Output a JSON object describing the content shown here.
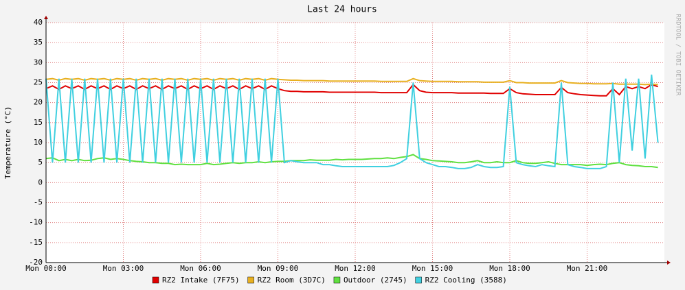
{
  "chart_data": {
    "type": "line",
    "title": "Last 24 hours",
    "ylabel": "Temperature (°C)",
    "watermark": "RRDTOOL / TOBI OETIKER",
    "x": [
      0,
      0.25,
      0.5,
      0.75,
      1,
      1.25,
      1.5,
      1.75,
      2,
      2.25,
      2.5,
      2.75,
      3,
      3.25,
      3.5,
      3.75,
      4,
      4.25,
      4.5,
      4.75,
      5,
      5.25,
      5.5,
      5.75,
      6,
      6.25,
      6.5,
      6.75,
      7,
      7.25,
      7.5,
      7.75,
      8,
      8.25,
      8.5,
      8.75,
      9,
      9.25,
      9.5,
      9.75,
      10,
      10.25,
      10.5,
      10.75,
      11,
      11.25,
      11.5,
      11.75,
      12,
      12.25,
      12.5,
      12.75,
      13,
      13.25,
      13.5,
      13.75,
      14,
      14.25,
      14.5,
      14.75,
      15,
      15.25,
      15.5,
      15.75,
      16,
      16.25,
      16.5,
      16.75,
      17,
      17.25,
      17.5,
      17.75,
      18,
      18.25,
      18.5,
      18.75,
      19,
      19.25,
      19.5,
      19.75,
      20,
      20.25,
      20.5,
      20.75,
      21,
      21.25,
      21.5,
      21.75,
      22,
      22.25,
      22.5,
      22.75,
      23,
      23.25,
      23.5,
      23.75
    ],
    "series": [
      {
        "name": "RZ2 Intake (7F75)",
        "color": "#e00000",
        "values": [
          23.5,
          24.2,
          23.3,
          24.2,
          23.5,
          24.2,
          23.3,
          24.2,
          23.5,
          24.2,
          23.3,
          24.2,
          23.5,
          24.2,
          23.3,
          24.2,
          23.5,
          24.2,
          23.3,
          24.2,
          23.5,
          24.2,
          23.3,
          24.2,
          23.5,
          24.2,
          23.3,
          24.2,
          23.5,
          24.2,
          23.3,
          24.2,
          23.5,
          24.2,
          23.3,
          24.2,
          23.5,
          23,
          22.8,
          22.8,
          22.7,
          22.7,
          22.7,
          22.7,
          22.6,
          22.6,
          22.6,
          22.6,
          22.6,
          22.6,
          22.6,
          22.6,
          22.5,
          22.5,
          22.5,
          22.5,
          22.5,
          24.5,
          23,
          22.6,
          22.5,
          22.5,
          22.5,
          22.5,
          22.4,
          22.4,
          22.4,
          22.4,
          22.4,
          22.3,
          22.3,
          22.3,
          23.5,
          22.5,
          22.2,
          22.1,
          22,
          22,
          22,
          22,
          23.8,
          22.5,
          22.2,
          22,
          21.9,
          21.8,
          21.7,
          21.7,
          23.5,
          22,
          24,
          23.5,
          24,
          23.5,
          24.5,
          24
        ]
      },
      {
        "name": "RZ2 Room (3D7C)",
        "color": "#e8b020",
        "values": [
          25.8,
          26,
          25.6,
          26,
          25.8,
          26,
          25.6,
          26,
          25.8,
          26,
          25.6,
          26,
          25.8,
          26,
          25.6,
          26,
          25.8,
          26,
          25.6,
          26,
          25.8,
          26,
          25.6,
          26,
          25.8,
          26,
          25.6,
          26,
          25.8,
          26,
          25.6,
          26,
          25.8,
          26,
          25.6,
          26,
          25.8,
          25.7,
          25.6,
          25.6,
          25.5,
          25.5,
          25.5,
          25.5,
          25.4,
          25.4,
          25.4,
          25.4,
          25.4,
          25.4,
          25.4,
          25.4,
          25.3,
          25.3,
          25.3,
          25.3,
          25.3,
          26,
          25.5,
          25.4,
          25.3,
          25.3,
          25.3,
          25.3,
          25.2,
          25.2,
          25.2,
          25.2,
          25.1,
          25.1,
          25.1,
          25.1,
          25.5,
          25,
          25,
          24.9,
          24.9,
          24.9,
          24.9,
          24.9,
          25.5,
          25,
          24.9,
          24.8,
          24.8,
          24.7,
          24.7,
          24.7,
          24.8,
          24.6,
          24.6,
          24.6,
          24.6,
          24.5,
          24.6,
          24.5
        ]
      },
      {
        "name": "Outdoor (2745)",
        "color": "#60e040",
        "values": [
          6,
          6.2,
          5.5,
          5.8,
          5.5,
          5.8,
          5.5,
          5.6,
          6,
          6.2,
          5.8,
          6,
          5.8,
          5.5,
          5.3,
          5.2,
          5,
          5,
          4.8,
          4.8,
          4.5,
          4.6,
          4.5,
          4.5,
          4.5,
          4.8,
          4.5,
          4.6,
          4.8,
          5,
          4.8,
          5,
          5,
          5.2,
          5,
          5.2,
          5.3,
          5.3,
          5.5,
          5.5,
          5.5,
          5.7,
          5.6,
          5.6,
          5.6,
          5.8,
          5.7,
          5.8,
          5.8,
          5.8,
          5.9,
          6,
          6,
          6.2,
          6,
          6.3,
          6.5,
          7,
          6,
          5.8,
          5.5,
          5.4,
          5.3,
          5.2,
          5,
          5,
          5.2,
          5.5,
          5,
          5,
          5.2,
          5,
          5,
          5.5,
          5,
          4.8,
          4.8,
          5,
          5.2,
          4.8,
          4.5,
          4.5,
          4.5,
          4.5,
          4.3,
          4.5,
          4.6,
          4.5,
          4.8,
          5,
          4.5,
          4.3,
          4.2,
          4,
          4,
          3.8
        ]
      },
      {
        "name": "RZ2 Cooling (3588)",
        "color": "#40d0e0",
        "values": [
          26,
          5,
          26,
          5,
          26,
          5,
          26,
          5,
          26,
          5,
          26,
          5,
          26,
          5,
          26,
          5,
          26,
          5,
          26,
          5,
          26,
          5,
          26,
          5,
          26,
          5,
          26,
          5,
          26,
          5,
          26,
          5,
          26,
          5,
          26,
          5,
          26,
          5,
          5.5,
          5.2,
          5,
          5,
          5,
          4.5,
          4.5,
          4.2,
          4,
          4,
          4,
          4,
          4,
          4,
          4,
          4,
          4.3,
          5,
          6,
          25,
          6,
          5,
          4.5,
          4,
          4,
          3.8,
          3.5,
          3.5,
          3.8,
          4.5,
          4,
          3.8,
          3.8,
          4,
          24,
          5,
          4.5,
          4.2,
          4,
          4.5,
          4.2,
          4,
          25,
          4.5,
          4,
          3.8,
          3.5,
          3.5,
          3.5,
          4,
          25,
          5,
          26,
          8,
          26,
          6,
          27,
          10
        ]
      }
    ],
    "xlim": [
      0,
      24
    ],
    "xticks": [
      {
        "value": 0,
        "label": "Mon 00:00"
      },
      {
        "value": 3,
        "label": "Mon 03:00"
      },
      {
        "value": 6,
        "label": "Mon 06:00"
      },
      {
        "value": 9,
        "label": "Mon 09:00"
      },
      {
        "value": 12,
        "label": "Mon 12:00"
      },
      {
        "value": 15,
        "label": "Mon 15:00"
      },
      {
        "value": 18,
        "label": "Mon 18:00"
      },
      {
        "value": 21,
        "label": "Mon 21:00"
      }
    ],
    "ylim": [
      -20,
      40
    ],
    "yticks": [
      -20,
      -15,
      -10,
      -5,
      0,
      5,
      10,
      15,
      20,
      25,
      30,
      35,
      40
    ],
    "grid": true
  }
}
